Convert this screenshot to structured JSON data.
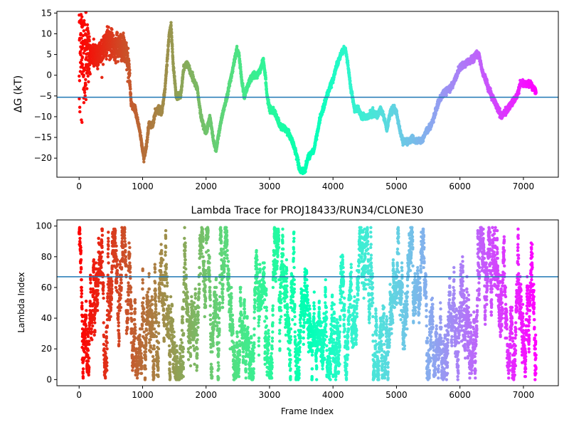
{
  "chart_data": [
    {
      "type": "scatter",
      "title": "",
      "xlabel": "",
      "ylabel": "ΔG (kT)",
      "xlim": [
        -350,
        7550
      ],
      "ylim": [
        -24.6,
        15.4
      ],
      "xticks": [
        0,
        1000,
        2000,
        3000,
        4000,
        5000,
        6000,
        7000
      ],
      "yticks": [
        -20,
        -15,
        -10,
        -5,
        0,
        5,
        10,
        15
      ],
      "hline": -5.3,
      "n_points": 7200,
      "color_scale": {
        "type": "rainbow_reversed",
        "by": "x",
        "x_min": 0,
        "x_max": 7200
      },
      "trace_waypoints": [
        [
          0,
          10
        ],
        [
          150,
          5
        ],
        [
          300,
          5
        ],
        [
          450,
          8
        ],
        [
          550,
          7
        ],
        [
          650,
          7
        ],
        [
          730,
          6
        ],
        [
          790,
          1
        ],
        [
          820,
          -7
        ],
        [
          880,
          -8
        ],
        [
          950,
          -13
        ],
        [
          1020,
          -20
        ],
        [
          1060,
          -17
        ],
        [
          1100,
          -12
        ],
        [
          1160,
          -12
        ],
        [
          1200,
          -9
        ],
        [
          1250,
          -8
        ],
        [
          1300,
          -9
        ],
        [
          1350,
          -4
        ],
        [
          1380,
          2
        ],
        [
          1420,
          10
        ],
        [
          1450,
          12
        ],
        [
          1480,
          3
        ],
        [
          1530,
          -5
        ],
        [
          1600,
          -5
        ],
        [
          1650,
          2
        ],
        [
          1700,
          3
        ],
        [
          1750,
          1
        ],
        [
          1800,
          -1
        ],
        [
          1860,
          -3
        ],
        [
          1920,
          -10
        ],
        [
          2000,
          -14
        ],
        [
          2060,
          -10
        ],
        [
          2120,
          -16
        ],
        [
          2160,
          -18
        ],
        [
          2200,
          -14
        ],
        [
          2250,
          -10
        ],
        [
          2330,
          -5
        ],
        [
          2400,
          0
        ],
        [
          2480,
          6
        ],
        [
          2520,
          5
        ],
        [
          2560,
          -1
        ],
        [
          2600,
          -5
        ],
        [
          2650,
          -3
        ],
        [
          2700,
          -1
        ],
        [
          2750,
          0
        ],
        [
          2800,
          0
        ],
        [
          2850,
          1
        ],
        [
          2900,
          4
        ],
        [
          2940,
          -1
        ],
        [
          2960,
          -5
        ],
        [
          3000,
          -8
        ],
        [
          3080,
          -9
        ],
        [
          3160,
          -12
        ],
        [
          3250,
          -13
        ],
        [
          3300,
          -14
        ],
        [
          3360,
          -16
        ],
        [
          3420,
          -19
        ],
        [
          3480,
          -23
        ],
        [
          3560,
          -23
        ],
        [
          3600,
          -20
        ],
        [
          3700,
          -18
        ],
        [
          3750,
          -14
        ],
        [
          3800,
          -10
        ],
        [
          3850,
          -8
        ],
        [
          3900,
          -5
        ],
        [
          3950,
          -3
        ],
        [
          4000,
          -1
        ],
        [
          4050,
          2
        ],
        [
          4100,
          4
        ],
        [
          4150,
          6
        ],
        [
          4200,
          6
        ],
        [
          4230,
          3
        ],
        [
          4280,
          -3
        ],
        [
          4340,
          -8
        ],
        [
          4400,
          -8
        ],
        [
          4450,
          -10
        ],
        [
          4550,
          -10
        ],
        [
          4620,
          -9
        ],
        [
          4700,
          -10
        ],
        [
          4750,
          -8
        ],
        [
          4800,
          -10
        ],
        [
          4850,
          -13
        ],
        [
          4900,
          -9
        ],
        [
          4950,
          -8
        ],
        [
          5000,
          -9
        ],
        [
          5050,
          -13
        ],
        [
          5100,
          -16
        ],
        [
          5200,
          -16
        ],
        [
          5250,
          -15
        ],
        [
          5300,
          -16
        ],
        [
          5400,
          -16
        ],
        [
          5450,
          -14
        ],
        [
          5550,
          -12
        ],
        [
          5650,
          -7
        ],
        [
          5750,
          -4
        ],
        [
          5850,
          -3
        ],
        [
          5900,
          -2
        ],
        [
          5950,
          0
        ],
        [
          6000,
          2
        ],
        [
          6100,
          3
        ],
        [
          6200,
          4
        ],
        [
          6250,
          5
        ],
        [
          6300,
          5
        ],
        [
          6350,
          1
        ],
        [
          6450,
          -3
        ],
        [
          6500,
          -5
        ],
        [
          6600,
          -8
        ],
        [
          6660,
          -10
        ],
        [
          6700,
          -9
        ],
        [
          6750,
          -8
        ],
        [
          6800,
          -7
        ],
        [
          6850,
          -6
        ],
        [
          6900,
          -5
        ],
        [
          6950,
          -2
        ],
        [
          7000,
          -2
        ],
        [
          7100,
          -2
        ],
        [
          7200,
          -4
        ]
      ]
    },
    {
      "type": "scatter",
      "title": "Lambda Trace for PROJ18433/RUN34/CLONE30",
      "xlabel": "Frame Index",
      "ylabel": "Lambda Index",
      "xlim": [
        -350,
        7550
      ],
      "ylim": [
        -4,
        104
      ],
      "xticks": [
        0,
        1000,
        2000,
        3000,
        4000,
        5000,
        6000,
        7000
      ],
      "yticks": [
        0,
        20,
        40,
        60,
        80,
        100
      ],
      "hline": 67,
      "n_points": 7200,
      "value_range": [
        0,
        99
      ],
      "color_scale": {
        "type": "rainbow_reversed",
        "by": "x",
        "x_min": 0,
        "x_max": 7200
      },
      "density_clusters": [
        {
          "x_center": 6300,
          "x_spread": 150,
          "y_range": [
            60,
            99
          ],
          "weight": 0.06
        },
        {
          "x_center": 5800,
          "x_spread": 300,
          "y_range": [
            0,
            45
          ],
          "weight": 0.08
        },
        {
          "x_center": 3900,
          "x_spread": 250,
          "y_range": [
            0,
            40
          ],
          "weight": 0.05
        },
        {
          "x_center": 7100,
          "x_spread": 80,
          "y_range": [
            40,
            99
          ],
          "weight": 0.03
        }
      ]
    }
  ]
}
